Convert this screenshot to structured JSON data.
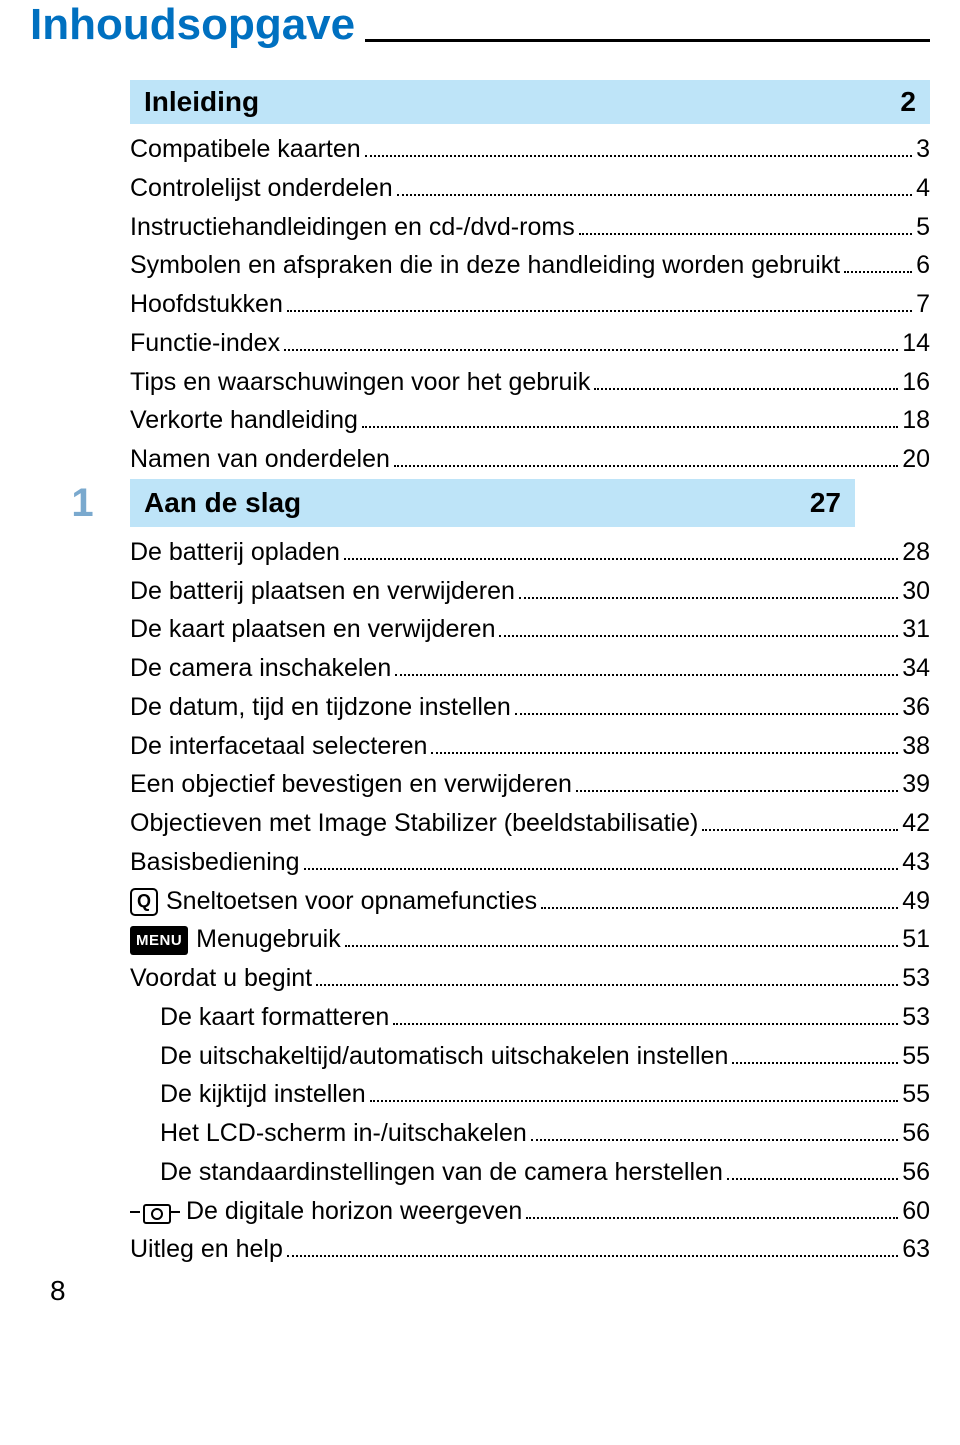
{
  "colors": {
    "title": "#0070c0",
    "sectionBg": "#bee4f8",
    "chapterNum": "#7aa9ce",
    "text": "#000000"
  },
  "fonts": {
    "title_size": 44,
    "section_size": 28,
    "entry_size": 25
  },
  "pageNumber": "8",
  "title": "Inhoudsopgave",
  "sections": [
    {
      "heading": "Inleiding",
      "headingPage": "2",
      "chapterNum": "",
      "entries": [
        {
          "label": "Compatibele kaarten",
          "page": "3"
        },
        {
          "label": "Controlelijst onderdelen",
          "page": "4"
        },
        {
          "label": "Instructiehandleidingen en cd-/dvd-roms",
          "page": "5"
        },
        {
          "label": "Symbolen en afspraken die in deze handleiding worden gebruikt",
          "page": "6"
        },
        {
          "label": "Hoofdstukken",
          "page": "7"
        },
        {
          "label": "Functie-index",
          "page": "14"
        },
        {
          "label": "Tips en waarschuwingen voor het gebruik",
          "page": "16"
        },
        {
          "label": "Verkorte handleiding",
          "page": "18"
        },
        {
          "label": "Namen van onderdelen",
          "page": "20"
        }
      ]
    },
    {
      "heading": "Aan de slag",
      "headingPage": "27",
      "chapterNum": "1",
      "entries": [
        {
          "label": "De batterij opladen",
          "page": "28"
        },
        {
          "label": "De batterij plaatsen en verwijderen",
          "page": "30"
        },
        {
          "label": "De kaart plaatsen en verwijderen",
          "page": "31"
        },
        {
          "label": "De camera inschakelen",
          "page": "34"
        },
        {
          "label": "De datum, tijd en tijdzone instellen",
          "page": "36"
        },
        {
          "label": "De interfacetaal selecteren",
          "page": "38"
        },
        {
          "label": "Een objectief bevestigen en verwijderen",
          "page": "39"
        },
        {
          "label": "Objectieven met Image Stabilizer (beeldstabilisatie)",
          "page": "42"
        },
        {
          "label": "Basisbediening",
          "page": "43"
        },
        {
          "icon": "q",
          "label": "Sneltoetsen voor opnamefuncties",
          "page": "49"
        },
        {
          "icon": "menu",
          "label": "Menugebruik",
          "page": "51"
        },
        {
          "label": "Voordat u begint",
          "page": "53"
        },
        {
          "indent": 1,
          "label": "De kaart formatteren",
          "page": "53"
        },
        {
          "indent": 1,
          "label": "De uitschakeltijd/automatisch uitschakelen instellen",
          "page": "55"
        },
        {
          "indent": 1,
          "label": "De kijktijd instellen",
          "page": "55"
        },
        {
          "indent": 1,
          "label": "Het LCD-scherm in-/uitschakelen",
          "page": "56"
        },
        {
          "indent": 1,
          "label": "De standaardinstellingen van de camera herstellen",
          "page": "56"
        },
        {
          "icon": "camera",
          "label": "De digitale horizon weergeven",
          "page": "60"
        },
        {
          "label": "Uitleg en help",
          "page": "63"
        }
      ]
    }
  ]
}
